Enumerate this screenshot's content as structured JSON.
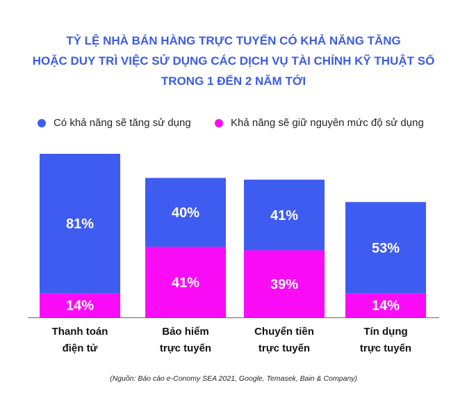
{
  "title_lines": [
    "TỶ LỆ NHÀ BÁN HÀNG TRỰC TUYẾN CÓ KHẢ NĂNG TĂNG",
    "HOẶC DUY TRÌ VIỆC SỬ DỤNG CÁC DỊCH VỤ TÀI CHÍNH KỸ THUẬT SỐ",
    "TRONG 1 ĐẾN 2 NĂM TỚI"
  ],
  "colors": {
    "title": "#3c5ce6",
    "increase": "#3f5cf0",
    "maintain": "#fa0cf7",
    "axis": "#666666"
  },
  "legend": [
    {
      "label": "Có khả năng sẽ tăng sử dụng",
      "color": "#3f5cf0"
    },
    {
      "label": "Khả năng sẽ giữ nguyên mức độ sử dụng",
      "color": "#fa0cf7"
    }
  ],
  "source": "(Nguồn: Báo cáo e-Conomy SEA 2021, Google, Temasek, Bain & Company)",
  "chart_data": {
    "type": "bar",
    "stacked": true,
    "unit": "%",
    "categories": [
      [
        "Thanh toán",
        "điện tử"
      ],
      [
        "Bảo hiểm",
        "trực tuyến"
      ],
      [
        "Chuyển tiền",
        "trực tuyến"
      ],
      [
        "Tín dụng",
        "trực tuyến"
      ]
    ],
    "series": [
      {
        "name": "Khả năng sẽ giữ nguyên mức độ sử dụng",
        "values": [
          14,
          41,
          39,
          14
        ]
      },
      {
        "name": "Có khả năng sẽ tăng sử dụng",
        "values": [
          81,
          40,
          41,
          53
        ]
      }
    ],
    "data_labels": [
      [
        "14%",
        "41%",
        "39%",
        "14%"
      ],
      [
        "81%",
        "40%",
        "41%",
        "53%"
      ]
    ],
    "ylim": [
      0,
      95
    ],
    "legend_position": "top",
    "grid": false
  }
}
